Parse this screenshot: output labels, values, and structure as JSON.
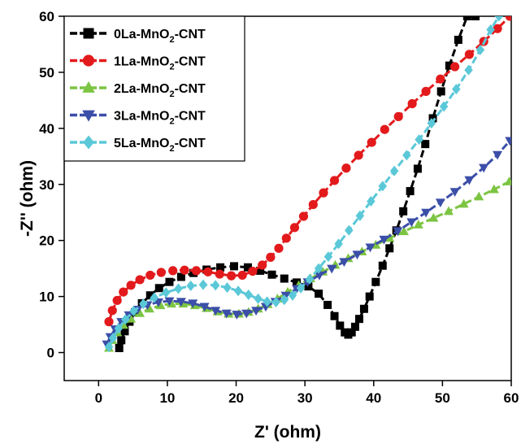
{
  "chart_data": {
    "type": "scatter",
    "title": "",
    "xlabel": "Z' (ohm)",
    "ylabel": "-Z'' (ohm)",
    "xlim": [
      -5,
      60
    ],
    "ylim": [
      -5,
      60
    ],
    "xticks": [
      0,
      10,
      20,
      30,
      40,
      50,
      60
    ],
    "yticks": [
      0,
      10,
      20,
      30,
      40,
      50,
      60
    ],
    "xtick_labels": [
      "0",
      "10",
      "20",
      "30",
      "40",
      "50",
      "60"
    ],
    "ytick_labels": [
      "0",
      "10",
      "20",
      "30",
      "40",
      "50",
      "60"
    ],
    "grid": false,
    "legend_position": "top-left",
    "series": [
      {
        "name": "0La-MnO2-CNT",
        "label_parts": [
          "0La-MnO",
          "2",
          "-CNT"
        ],
        "color": "#000000",
        "marker": "square",
        "points": [
          [
            3.0,
            0.8
          ],
          [
            3.3,
            2.2
          ],
          [
            3.8,
            3.8
          ],
          [
            4.5,
            5.5
          ],
          [
            5.3,
            7.2
          ],
          [
            6.3,
            8.8
          ],
          [
            7.5,
            10.2
          ],
          [
            8.8,
            11.5
          ],
          [
            10.3,
            12.6
          ],
          [
            12.0,
            13.5
          ],
          [
            13.8,
            14.2
          ],
          [
            15.7,
            14.8
          ],
          [
            17.7,
            15.2
          ],
          [
            19.7,
            15.4
          ],
          [
            21.7,
            15.2
          ],
          [
            23.5,
            14.6
          ],
          [
            25.2,
            13.9
          ],
          [
            27.0,
            13.2
          ],
          [
            28.8,
            12.5
          ],
          [
            30.5,
            11.8
          ],
          [
            32.0,
            10.5
          ],
          [
            33.3,
            8.5
          ],
          [
            34.3,
            6.5
          ],
          [
            35.1,
            4.8
          ],
          [
            35.8,
            3.6
          ],
          [
            36.3,
            3.2
          ],
          [
            36.8,
            3.6
          ],
          [
            37.3,
            4.6
          ],
          [
            37.9,
            6.0
          ],
          [
            38.6,
            7.8
          ],
          [
            39.4,
            10.0
          ],
          [
            40.3,
            12.6
          ],
          [
            41.3,
            15.5
          ],
          [
            42.3,
            18.6
          ],
          [
            43.3,
            21.8
          ],
          [
            44.3,
            25.2
          ],
          [
            45.3,
            28.8
          ],
          [
            46.4,
            32.8
          ],
          [
            47.5,
            37.2
          ],
          [
            48.6,
            41.8
          ],
          [
            49.8,
            46.6
          ],
          [
            51.0,
            51.2
          ],
          [
            52.3,
            55.8
          ],
          [
            53.6,
            60.0
          ],
          [
            54.8,
            60.0
          ]
        ]
      },
      {
        "name": "1La-MnO2-CNT",
        "label_parts": [
          "1La-MnO",
          "2",
          "-CNT"
        ],
        "color": "#e31a1c",
        "marker": "circle",
        "points": [
          [
            1.5,
            5.5
          ],
          [
            2.0,
            7.5
          ],
          [
            2.7,
            9.3
          ],
          [
            3.6,
            10.8
          ],
          [
            4.7,
            12.0
          ],
          [
            6.0,
            13.0
          ],
          [
            7.5,
            13.8
          ],
          [
            9.1,
            14.3
          ],
          [
            10.8,
            14.6
          ],
          [
            12.5,
            14.7
          ],
          [
            14.2,
            14.6
          ],
          [
            15.9,
            14.4
          ],
          [
            17.6,
            14.0
          ],
          [
            19.3,
            13.7
          ],
          [
            20.9,
            13.8
          ],
          [
            22.4,
            14.5
          ],
          [
            23.8,
            15.6
          ],
          [
            25.0,
            17.0
          ],
          [
            26.2,
            18.6
          ],
          [
            27.3,
            20.4
          ],
          [
            28.5,
            22.3
          ],
          [
            29.8,
            24.3
          ],
          [
            31.2,
            26.4
          ],
          [
            32.7,
            28.5
          ],
          [
            34.3,
            30.7
          ],
          [
            36.0,
            32.9
          ],
          [
            37.8,
            35.2
          ],
          [
            39.7,
            37.5
          ],
          [
            41.6,
            39.8
          ],
          [
            43.6,
            42.1
          ],
          [
            45.6,
            44.4
          ],
          [
            47.6,
            46.6
          ],
          [
            49.7,
            48.8
          ],
          [
            51.8,
            51.0
          ],
          [
            53.9,
            53.2
          ],
          [
            56.0,
            55.5
          ],
          [
            58.0,
            57.8
          ],
          [
            59.8,
            60.0
          ]
        ]
      },
      {
        "name": "2La-MnO2-CNT",
        "label_parts": [
          "2La-MnO",
          "2",
          "-CNT"
        ],
        "color": "#7cc442",
        "marker": "triangle-up",
        "points": [
          [
            1.5,
            0.8
          ],
          [
            2.0,
            2.2
          ],
          [
            2.7,
            3.6
          ],
          [
            3.6,
            4.9
          ],
          [
            4.7,
            6.0
          ],
          [
            6.0,
            7.0
          ],
          [
            7.4,
            7.8
          ],
          [
            9.0,
            8.4
          ],
          [
            10.6,
            8.7
          ],
          [
            12.3,
            8.7
          ],
          [
            14.0,
            8.4
          ],
          [
            15.7,
            7.9
          ],
          [
            17.3,
            7.3
          ],
          [
            18.9,
            6.9
          ],
          [
            20.4,
            6.9
          ],
          [
            21.8,
            7.2
          ],
          [
            23.2,
            7.8
          ],
          [
            24.6,
            8.6
          ],
          [
            26.0,
            9.6
          ],
          [
            27.5,
            10.8
          ],
          [
            29.1,
            12.0
          ],
          [
            30.8,
            13.2
          ],
          [
            32.6,
            14.4
          ],
          [
            34.4,
            15.6
          ],
          [
            36.3,
            16.8
          ],
          [
            38.3,
            18.0
          ],
          [
            40.3,
            19.2
          ],
          [
            42.3,
            20.4
          ],
          [
            44.4,
            21.6
          ],
          [
            46.5,
            22.8
          ],
          [
            48.7,
            24.0
          ],
          [
            50.9,
            25.2
          ],
          [
            53.1,
            26.5
          ],
          [
            55.3,
            27.8
          ],
          [
            57.5,
            29.1
          ],
          [
            59.7,
            30.5
          ]
        ]
      },
      {
        "name": "3La-MnO2-CNT",
        "label_parts": [
          "3La-MnO",
          "2",
          "-CNT"
        ],
        "color": "#3b4ea8",
        "marker": "triangle-down",
        "points": [
          [
            1.2,
            1.5
          ],
          [
            1.7,
            2.8
          ],
          [
            2.4,
            4.2
          ],
          [
            3.3,
            5.5
          ],
          [
            4.4,
            6.7
          ],
          [
            5.7,
            7.7
          ],
          [
            7.1,
            8.5
          ],
          [
            8.7,
            9.0
          ],
          [
            10.3,
            9.2
          ],
          [
            12.0,
            9.1
          ],
          [
            13.7,
            8.8
          ],
          [
            15.4,
            8.2
          ],
          [
            17.0,
            7.5
          ],
          [
            18.6,
            7.0
          ],
          [
            20.1,
            6.8
          ],
          [
            21.5,
            7.0
          ],
          [
            22.9,
            7.5
          ],
          [
            24.3,
            8.2
          ],
          [
            25.7,
            9.1
          ],
          [
            27.2,
            10.2
          ],
          [
            28.8,
            11.4
          ],
          [
            30.4,
            12.6
          ],
          [
            32.1,
            13.8
          ],
          [
            33.9,
            15.0
          ],
          [
            35.7,
            16.2
          ],
          [
            37.6,
            17.5
          ],
          [
            39.5,
            18.8
          ],
          [
            41.5,
            20.2
          ],
          [
            43.5,
            21.7
          ],
          [
            45.5,
            23.3
          ],
          [
            47.6,
            25.0
          ],
          [
            49.7,
            26.8
          ],
          [
            51.8,
            28.7
          ],
          [
            53.9,
            30.8
          ],
          [
            56.0,
            33.0
          ],
          [
            58.0,
            35.3
          ],
          [
            59.8,
            37.8
          ]
        ]
      },
      {
        "name": "5La-MnO2-CNT",
        "label_parts": [
          "5La-MnO",
          "2",
          "-CNT"
        ],
        "color": "#5bc8d8",
        "marker": "diamond",
        "points": [
          [
            1.5,
            1.0
          ],
          [
            2.1,
            2.6
          ],
          [
            2.9,
            4.3
          ],
          [
            3.9,
            5.9
          ],
          [
            5.1,
            7.4
          ],
          [
            6.5,
            8.7
          ],
          [
            8.1,
            9.8
          ],
          [
            9.8,
            10.7
          ],
          [
            11.6,
            11.4
          ],
          [
            13.4,
            11.9
          ],
          [
            15.2,
            12.1
          ],
          [
            17.0,
            12.0
          ],
          [
            18.7,
            11.6
          ],
          [
            20.3,
            11.0
          ],
          [
            21.8,
            10.3
          ],
          [
            23.2,
            9.6
          ],
          [
            24.5,
            9.1
          ],
          [
            25.8,
            9.0
          ],
          [
            27.0,
            9.4
          ],
          [
            28.2,
            10.2
          ],
          [
            29.4,
            11.5
          ],
          [
            30.7,
            13.1
          ],
          [
            32.0,
            15.0
          ],
          [
            33.4,
            17.1
          ],
          [
            34.9,
            19.4
          ],
          [
            36.4,
            21.8
          ],
          [
            38.0,
            24.4
          ],
          [
            39.6,
            27.0
          ],
          [
            41.3,
            29.7
          ],
          [
            43.0,
            32.4
          ],
          [
            44.8,
            35.2
          ],
          [
            46.6,
            38.0
          ],
          [
            48.4,
            40.9
          ],
          [
            50.2,
            43.9
          ],
          [
            52.0,
            47.0
          ],
          [
            53.8,
            50.4
          ],
          [
            55.5,
            54.0
          ],
          [
            57.0,
            57.6
          ],
          [
            58.2,
            60.0
          ]
        ]
      }
    ]
  }
}
